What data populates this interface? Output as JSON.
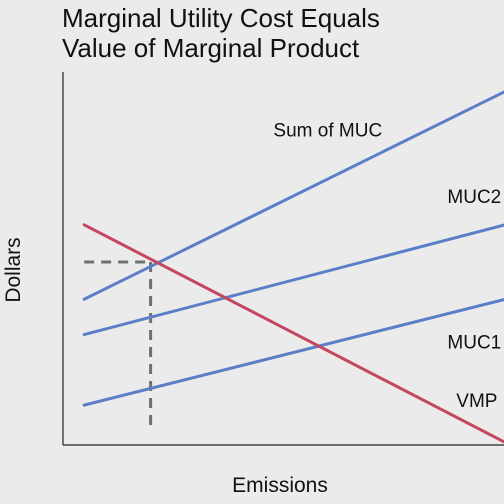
{
  "title_lines": [
    "Marginal Utility Cost Equals",
    "Value of Marginal Product"
  ],
  "chart_data": {
    "type": "line",
    "title": "Marginal Utility Cost Equals Value of Marginal Product",
    "xlabel": "Emissions",
    "ylabel": "Dollars",
    "xlim": [
      0,
      10
    ],
    "ylim": [
      0,
      10
    ],
    "axis_ticks": false,
    "grid": false,
    "series": [
      {
        "name": "Sum of MUC",
        "color": "#5b7ec8",
        "x": [
          0.5,
          10
        ],
        "y": [
          4.1,
          9.4
        ]
      },
      {
        "name": "MUC2",
        "color": "#5b7ec8",
        "x": [
          0.5,
          10
        ],
        "y": [
          3.2,
          6.0
        ]
      },
      {
        "name": "MUC1",
        "color": "#5b7ec8",
        "x": [
          0.5,
          10
        ],
        "y": [
          1.4,
          4.1
        ]
      },
      {
        "name": "VMP",
        "color": "#c5475f",
        "x": [
          0.5,
          10
        ],
        "y": [
          6.0,
          0.45
        ]
      }
    ],
    "equilibrium": {
      "x": 2.0,
      "y": 5.05,
      "style": "dashed",
      "color": "#707070"
    }
  }
}
